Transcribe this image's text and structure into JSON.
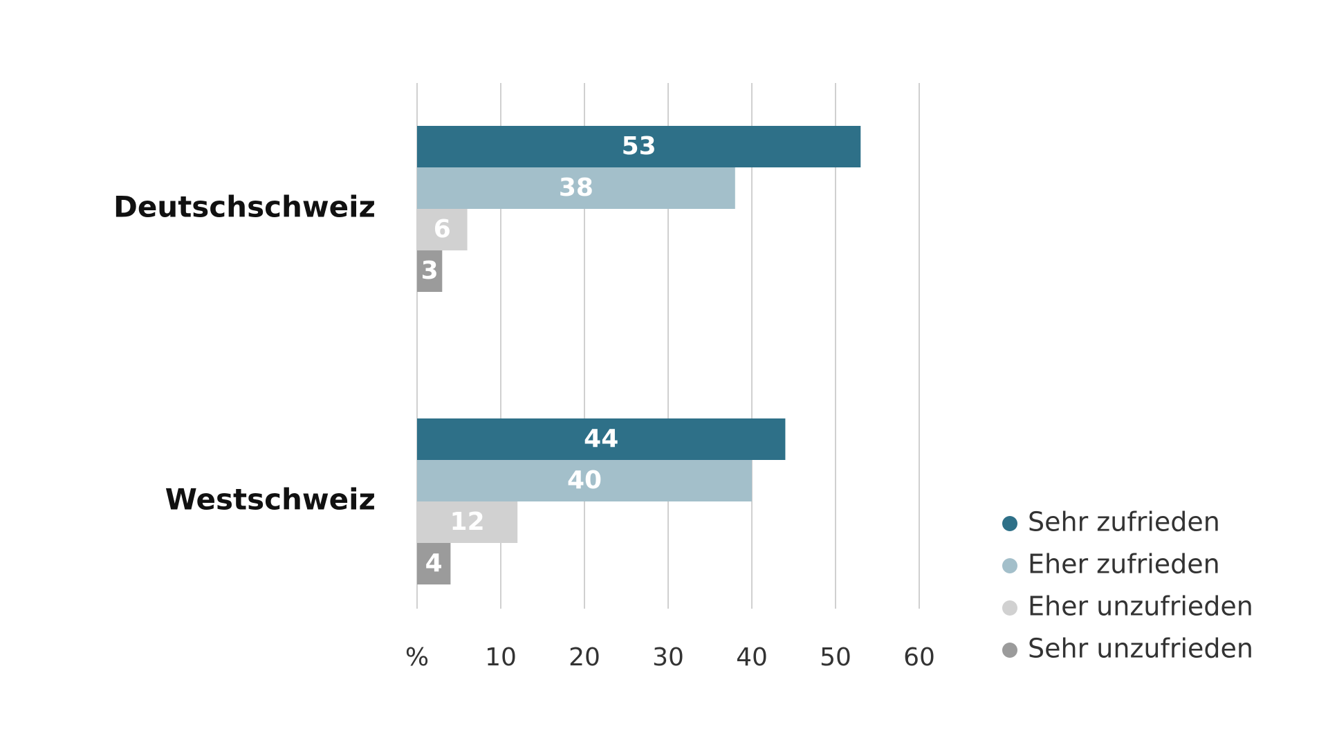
{
  "chart_data": {
    "type": "bar",
    "orientation": "horizontal",
    "categories": [
      "Deutschschweiz",
      "Westschweiz"
    ],
    "series": [
      {
        "name": "Sehr zufrieden",
        "values": [
          53,
          44
        ],
        "color": "#2e7088"
      },
      {
        "name": "Eher zufrieden",
        "values": [
          38,
          40
        ],
        "color": "#a3bfca"
      },
      {
        "name": "Eher unzufrieden",
        "values": [
          6,
          12
        ],
        "color": "#d1d1d1"
      },
      {
        "name": "Sehr unzufrieden",
        "values": [
          3,
          4
        ],
        "color": "#9b9b9b"
      }
    ],
    "x_ticks": [
      "%",
      "10",
      "20",
      "30",
      "40",
      "50",
      "60"
    ],
    "xlim": [
      0,
      60
    ],
    "grid": true,
    "legend_position": "bottom-right",
    "data_labels": true
  }
}
